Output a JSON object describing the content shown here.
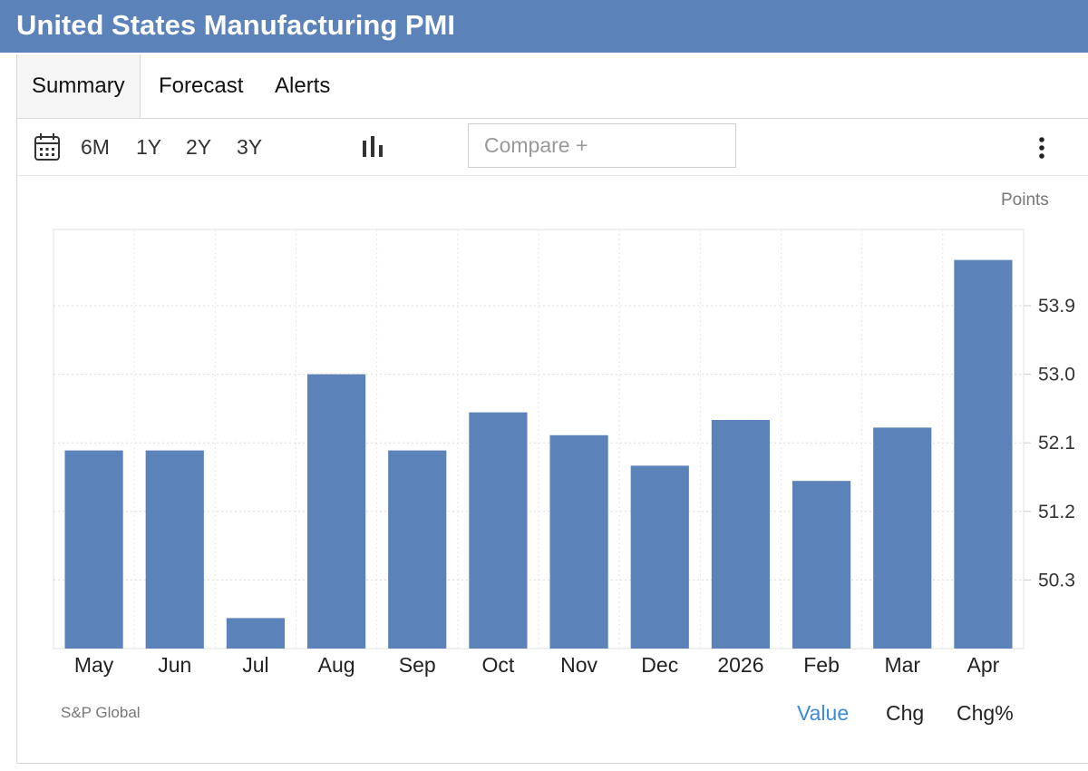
{
  "header": {
    "title": "United States Manufacturing PMI"
  },
  "tabs": [
    {
      "label": "Summary",
      "active": true
    },
    {
      "label": "Forecast",
      "active": false
    },
    {
      "label": "Alerts",
      "active": false
    }
  ],
  "toolbar": {
    "ranges": [
      "6M",
      "1Y",
      "2Y",
      "3Y"
    ],
    "compare_placeholder": "Compare +",
    "calendar_icon": "calendar-icon",
    "chart_type_icon": "bar-chart-icon",
    "more_icon": "more-vertical-icon"
  },
  "chart_data": {
    "type": "bar",
    "categories": [
      "May",
      "Jun",
      "Jul",
      "Aug",
      "Sep",
      "Oct",
      "Nov",
      "Dec",
      "2026",
      "Feb",
      "Mar",
      "Apr"
    ],
    "values": [
      52.0,
      52.0,
      49.8,
      53.0,
      52.0,
      52.5,
      52.2,
      51.8,
      52.4,
      51.6,
      52.3,
      54.5
    ],
    "ylabel": "Points",
    "yticks": [
      50.3,
      51.2,
      52.1,
      53.0,
      53.9
    ],
    "ytick_labels": [
      "50.3",
      "51.2",
      "52.1",
      "53.0",
      "53.9"
    ],
    "ylim": [
      49.4,
      54.9
    ],
    "bar_color": "#5b82b9",
    "grid": true,
    "source": "S&P Global"
  },
  "footer": {
    "views": [
      {
        "label": "Value",
        "active": true
      },
      {
        "label": "Chg",
        "active": false
      },
      {
        "label": "Chg%",
        "active": false
      }
    ]
  },
  "colors": {
    "header_bg": "#5b82b9",
    "accent": "#3c8ad8"
  }
}
